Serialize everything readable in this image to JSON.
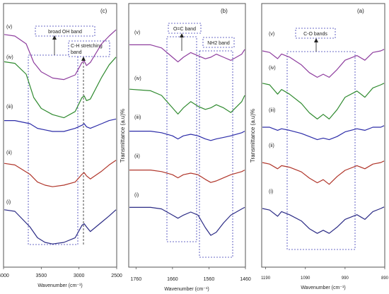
{
  "chart_data": [
    {
      "type": "line",
      "panel_label": "(c)",
      "xlabel": "Wavenumber (cm⁻¹)",
      "ylabel": "",
      "xlim": [
        4000,
        2500
      ],
      "x_ticks": [
        4000,
        3500,
        3000,
        2500
      ],
      "series": [
        {
          "name": "(i)",
          "color": "#2b2b85",
          "x": [
            4000,
            3850,
            3650,
            3550,
            3450,
            3350,
            3200,
            3050,
            2960,
            2930,
            2900,
            2850,
            2700,
            2600,
            2500
          ],
          "y": [
            6,
            5,
            -5,
            -12,
            -15,
            -16,
            -15,
            -12,
            -4,
            -3,
            -5,
            -8,
            -2,
            2,
            6
          ]
        },
        {
          "name": "(ii)",
          "color": "#b0352a",
          "x": [
            4000,
            3850,
            3650,
            3550,
            3450,
            3350,
            3200,
            3050,
            2960,
            2930,
            2900,
            2850,
            2700,
            2600,
            2500
          ],
          "y": [
            4,
            3,
            -3,
            -8,
            -10,
            -11,
            -10,
            -8,
            -3,
            -2,
            -4,
            -6,
            -1,
            3,
            6
          ]
        },
        {
          "name": "(iii)",
          "color": "#2c2ca8",
          "x": [
            4000,
            3850,
            3650,
            3550,
            3450,
            3350,
            3200,
            3050,
            2960,
            2930,
            2900,
            2850,
            2700,
            2600,
            2500
          ],
          "y": [
            2,
            2,
            0,
            -3,
            -4,
            -5,
            -5,
            -3,
            -1,
            0,
            -2,
            -3,
            0,
            2,
            3
          ]
        },
        {
          "name": "(iv)",
          "color": "#2f8a2f",
          "x": [
            4000,
            3850,
            3700,
            3600,
            3500,
            3350,
            3200,
            3050,
            2960,
            2930,
            2900,
            2850,
            2700,
            2600,
            2500
          ],
          "y": [
            8,
            7,
            0,
            -15,
            -22,
            -26,
            -28,
            -24,
            -15,
            -14,
            -17,
            -16,
            -2,
            6,
            11
          ]
        },
        {
          "name": "(v)",
          "color": "#8e3d9e",
          "x": [
            4000,
            3850,
            3700,
            3600,
            3500,
            3350,
            3200,
            3050,
            2960,
            2930,
            2900,
            2850,
            2700,
            2600,
            2500
          ],
          "y": [
            6,
            5,
            0,
            -12,
            -18,
            -22,
            -23,
            -20,
            -12,
            -11,
            -14,
            -12,
            0,
            5,
            9
          ]
        }
      ],
      "annotations": [
        "broad OH band",
        "C-H stretching band"
      ]
    },
    {
      "type": "line",
      "panel_label": "(b)",
      "xlabel": "Wavenumber (cm⁻¹)",
      "ylabel": "Transmittance (a.u)%",
      "xlim": [
        1780,
        1460
      ],
      "x_ticks": [
        1760,
        1660,
        1560,
        1460
      ],
      "series": [
        {
          "name": "(i)",
          "color": "#2b2b85",
          "x": [
            1780,
            1720,
            1690,
            1660,
            1645,
            1630,
            1610,
            1590,
            1570,
            1555,
            1540,
            1520,
            1500,
            1470,
            1460
          ],
          "y": [
            3,
            3,
            2,
            -2,
            -4,
            -2,
            0,
            -2,
            -10,
            -15,
            -13,
            -7,
            -2,
            2,
            3
          ]
        },
        {
          "name": "(ii)",
          "color": "#b0352a",
          "x": [
            1780,
            1720,
            1690,
            1660,
            1645,
            1630,
            1610,
            1590,
            1570,
            1555,
            1540,
            1520,
            1500,
            1470,
            1460
          ],
          "y": [
            2,
            2,
            1,
            -1,
            -3,
            -1,
            0,
            -1,
            -4,
            -6,
            -5,
            -3,
            -1,
            1,
            2
          ]
        },
        {
          "name": "(iii)",
          "color": "#2c2ca8",
          "x": [
            1780,
            1720,
            1690,
            1660,
            1645,
            1630,
            1610,
            1590,
            1570,
            1555,
            1540,
            1520,
            1500,
            1470,
            1460
          ],
          "y": [
            2,
            2,
            1,
            -1,
            -3,
            -1,
            0,
            -1,
            -3,
            -4,
            -3,
            -2,
            -1,
            1,
            2
          ]
        },
        {
          "name": "(iv)",
          "color": "#2f8a2f",
          "x": [
            1780,
            1720,
            1690,
            1660,
            1645,
            1630,
            1610,
            1590,
            1570,
            1555,
            1540,
            1520,
            1500,
            1470,
            1460
          ],
          "y": [
            4,
            3,
            0,
            -8,
            -12,
            -8,
            -4,
            -7,
            -9,
            -8,
            -6,
            -8,
            -11,
            -4,
            0
          ]
        },
        {
          "name": "(v)",
          "color": "#8e3d9e",
          "x": [
            1780,
            1720,
            1690,
            1660,
            1645,
            1630,
            1610,
            1590,
            1570,
            1555,
            1540,
            1520,
            1500,
            1470,
            1460
          ],
          "y": [
            3,
            3,
            1,
            -5,
            -8,
            -5,
            -2,
            -4,
            -6,
            -5,
            -3,
            -5,
            -7,
            -3,
            0
          ]
        }
      ],
      "annotations": [
        "O=C band",
        "NH2 band"
      ]
    },
    {
      "type": "line",
      "panel_label": "(a)",
      "xlabel": "Wavenumber (cm⁻¹)",
      "ylabel": "Transmittance (a.u)%",
      "xlim": [
        1200,
        890
      ],
      "x_ticks": [
        1190,
        1090,
        990,
        890
      ],
      "series": [
        {
          "name": "(i)",
          "color": "#2b2b85",
          "x": [
            1200,
            1180,
            1160,
            1150,
            1130,
            1100,
            1080,
            1060,
            1045,
            1030,
            1010,
            990,
            960,
            940,
            920,
            900,
            890
          ],
          "y": [
            0,
            -1,
            -5,
            -2,
            -4,
            -8,
            -13,
            -16,
            -14,
            -16,
            -12,
            -7,
            -4,
            -7,
            -2,
            0,
            1
          ]
        },
        {
          "name": "(ii)",
          "color": "#b0352a",
          "x": [
            1200,
            1180,
            1160,
            1150,
            1130,
            1100,
            1080,
            1060,
            1045,
            1030,
            1010,
            990,
            960,
            940,
            920,
            900,
            890
          ],
          "y": [
            0,
            -1,
            -4,
            -2,
            -3,
            -6,
            -10,
            -13,
            -11,
            -14,
            -9,
            -5,
            -2,
            -4,
            -1,
            0,
            1
          ]
        },
        {
          "name": "(iii)",
          "color": "#2c2ca8",
          "x": [
            1200,
            1180,
            1160,
            1150,
            1130,
            1100,
            1080,
            1060,
            1045,
            1030,
            1010,
            990,
            960,
            940,
            920,
            900,
            890
          ],
          "y": [
            0,
            0,
            -2,
            -1,
            -2,
            -4,
            -6,
            -8,
            -7,
            -8,
            -6,
            -3,
            -1,
            -2,
            0,
            0,
            1
          ]
        },
        {
          "name": "(iv)",
          "color": "#2f8a2f",
          "x": [
            1200,
            1180,
            1160,
            1150,
            1130,
            1100,
            1080,
            1060,
            1045,
            1030,
            1010,
            990,
            960,
            940,
            920,
            900,
            890
          ],
          "y": [
            1,
            0,
            -6,
            -3,
            -6,
            -12,
            -18,
            -22,
            -19,
            -22,
            -16,
            -8,
            -4,
            -8,
            -2,
            0,
            1
          ]
        },
        {
          "name": "(v)",
          "color": "#8e3d9e",
          "x": [
            1200,
            1180,
            1160,
            1150,
            1130,
            1100,
            1080,
            1060,
            1045,
            1030,
            1010,
            990,
            960,
            940,
            920,
            900,
            890
          ],
          "y": [
            0,
            -1,
            -5,
            -2,
            -4,
            -9,
            -14,
            -17,
            -15,
            -17,
            -12,
            -6,
            -3,
            -6,
            -1,
            0,
            1
          ]
        }
      ],
      "annotations": [
        "C-O bands"
      ]
    }
  ]
}
